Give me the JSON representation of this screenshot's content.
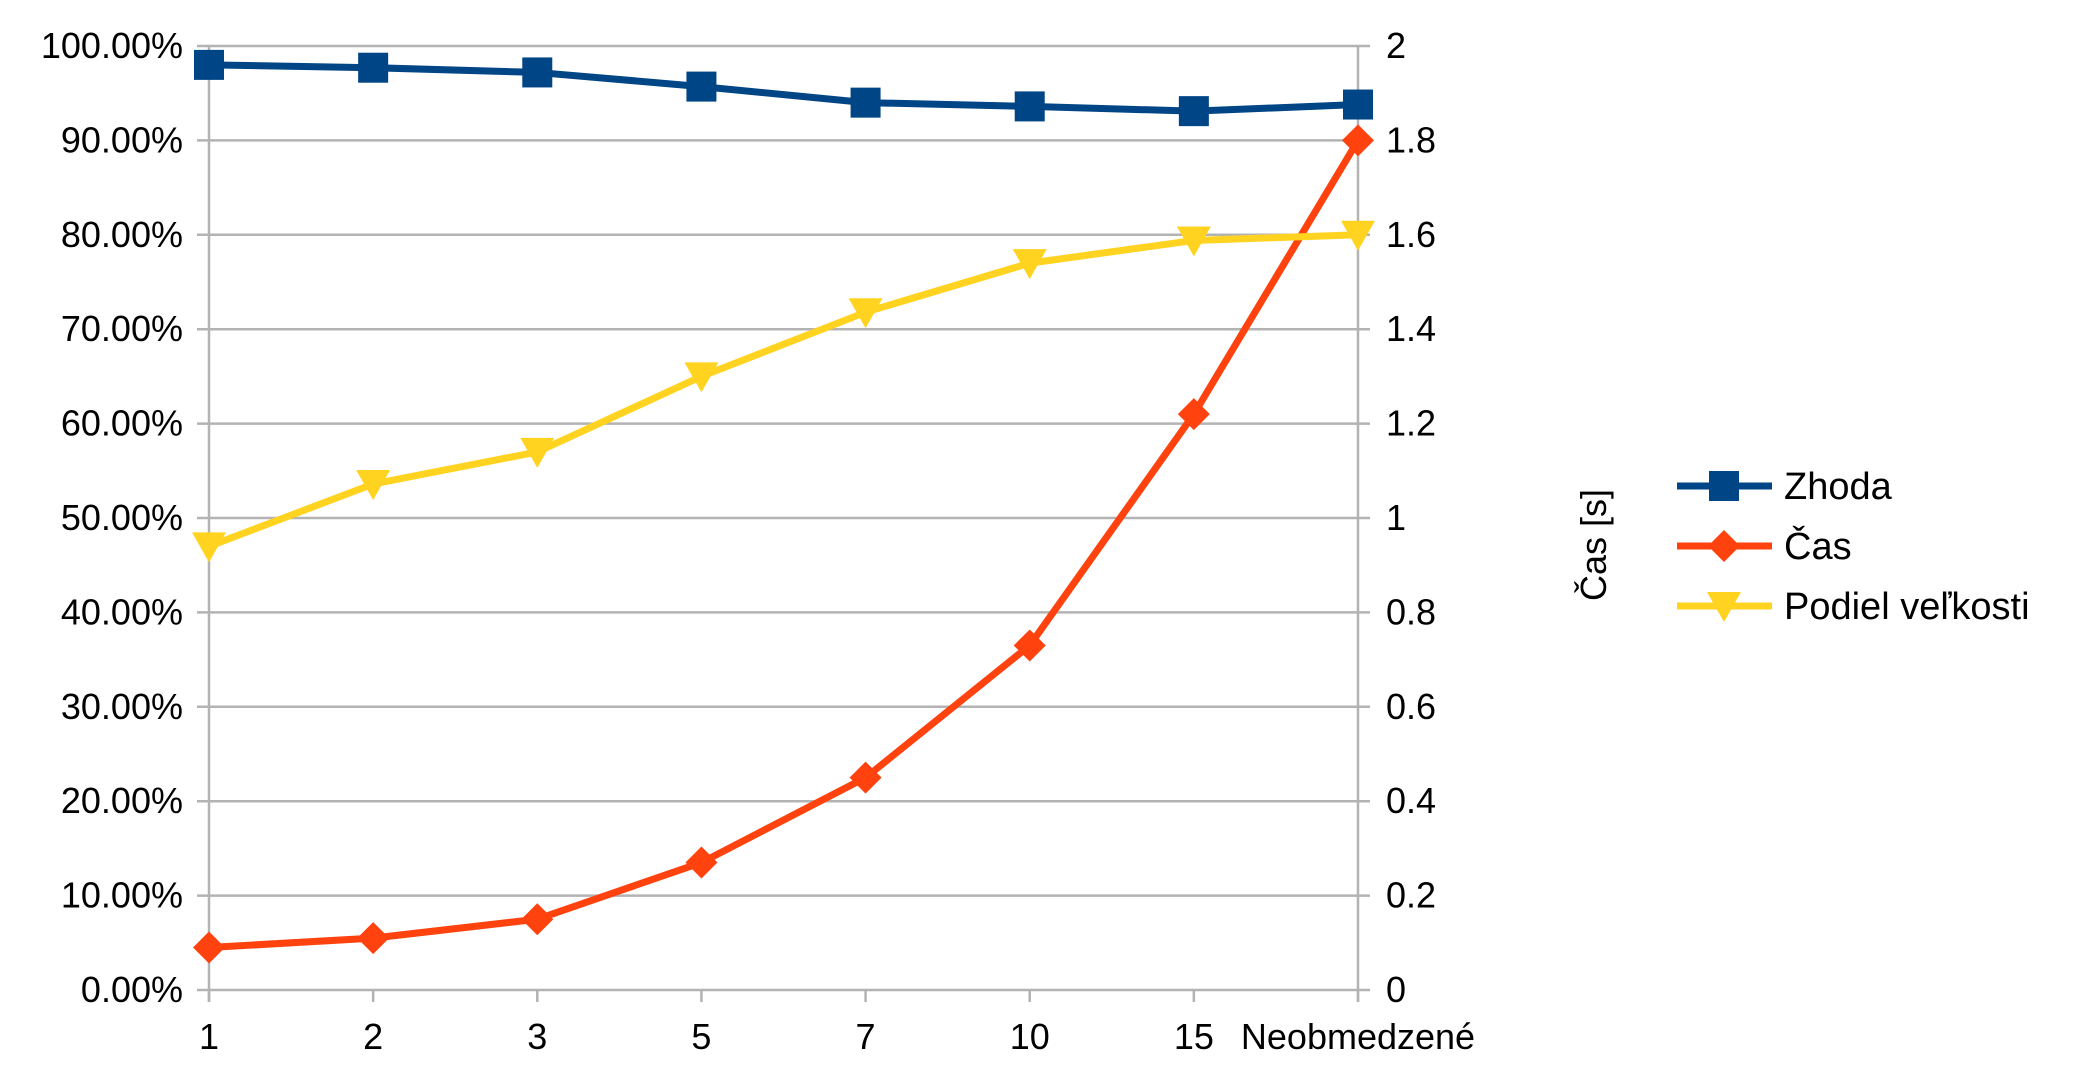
{
  "chart_data": {
    "type": "line",
    "categories": [
      "1",
      "2",
      "3",
      "5",
      "7",
      "10",
      "15",
      "Neobmedzené"
    ],
    "left_axis": {
      "ticks": [
        "0.00%",
        "10.00%",
        "20.00%",
        "30.00%",
        "40.00%",
        "50.00%",
        "60.00%",
        "70.00%",
        "80.00%",
        "90.00%",
        "100.00%"
      ],
      "ylim": [
        0,
        100
      ]
    },
    "right_axis": {
      "label": "Čas [s]",
      "ticks": [
        "0",
        "0.2",
        "0.4",
        "0.6",
        "0.8",
        "1",
        "1.2",
        "1.4",
        "1.6",
        "1.8",
        "2"
      ],
      "ylim": [
        0,
        2
      ]
    },
    "grid": true,
    "legend_position": "right",
    "series": [
      {
        "name": "Zhoda",
        "axis": "left",
        "color": "#004586",
        "marker": "square",
        "values": [
          98.0,
          97.7,
          97.2,
          95.7,
          94.0,
          93.6,
          93.1,
          93.8
        ]
      },
      {
        "name": "Čas",
        "axis": "right",
        "color": "#ff420e",
        "marker": "diamond",
        "values": [
          0.09,
          0.11,
          0.15,
          0.27,
          0.45,
          0.73,
          1.22,
          1.8
        ]
      },
      {
        "name": "Podiel veľkosti",
        "axis": "left",
        "color": "#ffd320",
        "marker": "triangle-down",
        "values": [
          47.0,
          53.6,
          57.0,
          65.0,
          71.8,
          77.0,
          79.4,
          80.0
        ]
      }
    ]
  }
}
